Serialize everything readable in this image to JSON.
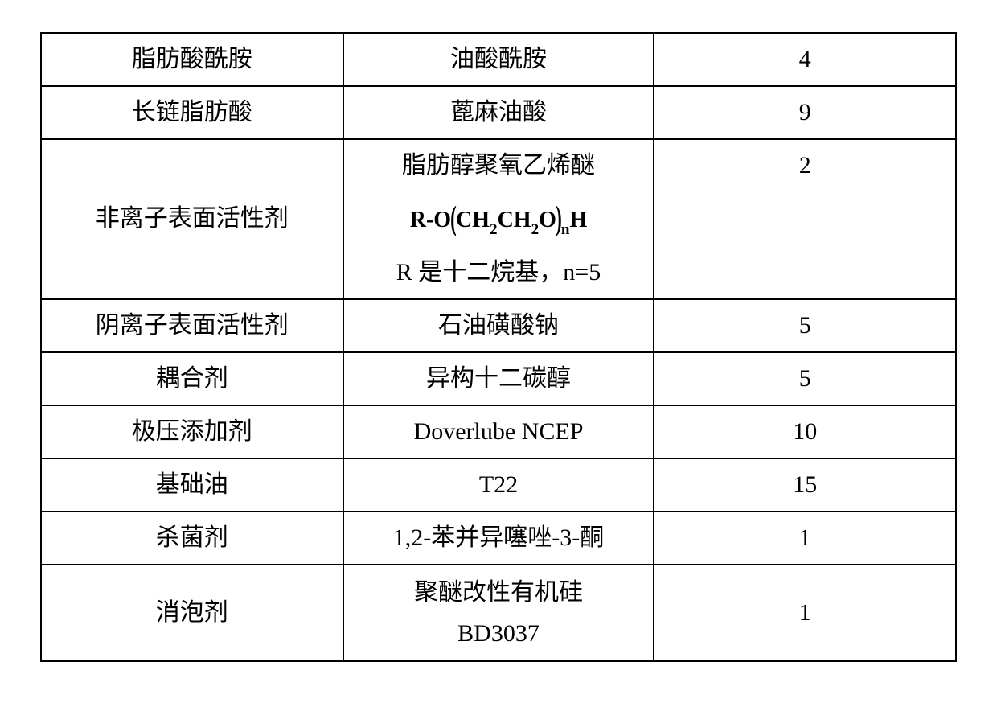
{
  "table": {
    "columns": {
      "count": 3
    },
    "border_color": "#000000",
    "background_color": "#ffffff",
    "font_size_pt": 22,
    "rows": [
      {
        "c1": "脂肪酸酰胺",
        "c2": "油酸酰胺",
        "c3": "4"
      },
      {
        "c1": "长链脂肪酸",
        "c2": "蓖麻油酸",
        "c3": "9"
      },
      {
        "c1": "非离子表面活性剂",
        "c2_line1": "脂肪醇聚氧乙烯醚",
        "c2_formula": {
          "prefix": "R-O",
          "unit": "CH₂CH₂O",
          "repeat_sub": "n",
          "suffix": "H"
        },
        "c2_note": "R 是十二烷基，n=5",
        "c3": "2"
      },
      {
        "c1": "阴离子表面活性剂",
        "c2": "石油磺酸钠",
        "c3": "5"
      },
      {
        "c1": "耦合剂",
        "c2": "异构十二碳醇",
        "c3": "5"
      },
      {
        "c1": "极压添加剂",
        "c2": "Doverlube NCEP",
        "c3": "10"
      },
      {
        "c1": "基础油",
        "c2": "T22",
        "c3": "15"
      },
      {
        "c1": "杀菌剂",
        "c2": "1,2-苯并异噻唑-3-酮",
        "c3": "1"
      },
      {
        "c1": "消泡剂",
        "c2_line1": "聚醚改性有机硅",
        "c2_line2": "BD3037",
        "c3": "1"
      }
    ]
  }
}
